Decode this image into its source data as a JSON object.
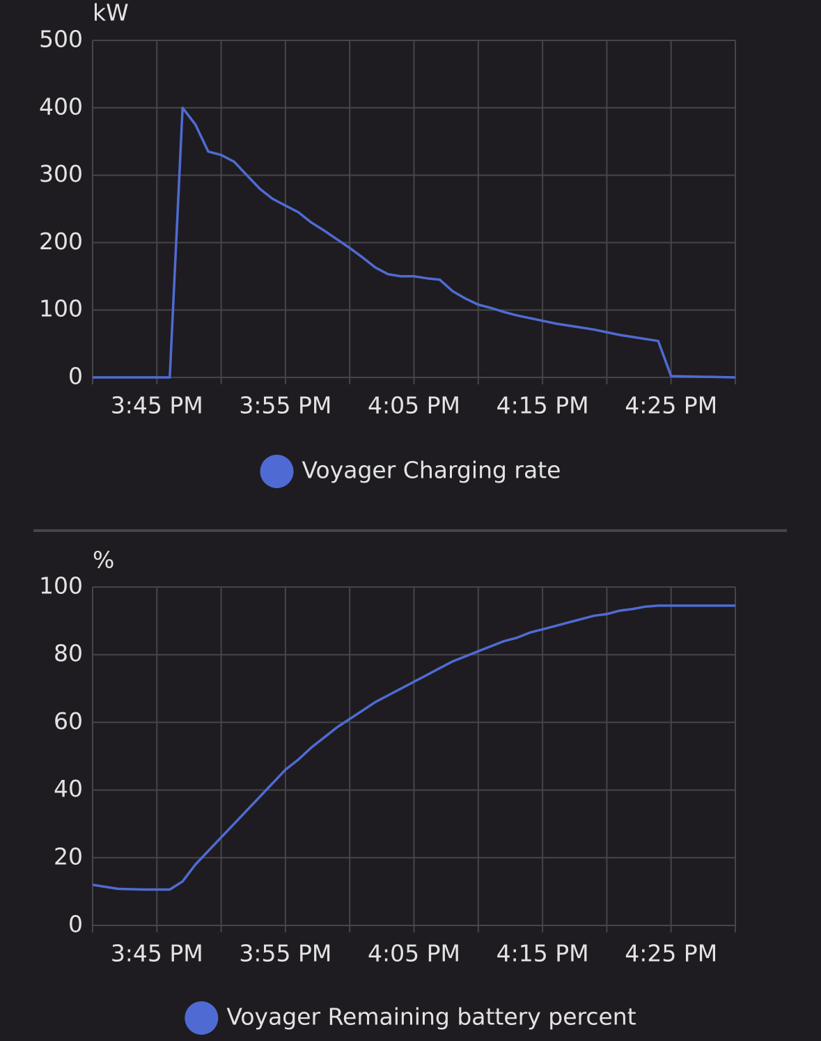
{
  "chart_data": [
    {
      "type": "line",
      "y_label": "kW",
      "x": [
        "3:40 PM",
        "3:41 PM",
        "3:42 PM",
        "3:43 PM",
        "3:44 PM",
        "3:45 PM",
        "3:46 PM",
        "3:47 PM",
        "3:48 PM",
        "3:49 PM",
        "3:50 PM",
        "3:51 PM",
        "3:52 PM",
        "3:53 PM",
        "3:54 PM",
        "3:55 PM",
        "3:56 PM",
        "3:57 PM",
        "3:58 PM",
        "3:59 PM",
        "4:00 PM",
        "4:01 PM",
        "4:02 PM",
        "4:03 PM",
        "4:04 PM",
        "4:05 PM",
        "4:06 PM",
        "4:07 PM",
        "4:08 PM",
        "4:09 PM",
        "4:10 PM",
        "4:11 PM",
        "4:12 PM",
        "4:13 PM",
        "4:14 PM",
        "4:15 PM",
        "4:16 PM",
        "4:17 PM",
        "4:18 PM",
        "4:19 PM",
        "4:20 PM",
        "4:21 PM",
        "4:22 PM",
        "4:23 PM",
        "4:24 PM",
        "4:25 PM",
        "4:30 PM"
      ],
      "series": [
        {
          "name": "Voyager Charging rate",
          "color": "#4f6bd3",
          "values": [
            0,
            0,
            0,
            0,
            0,
            0,
            0,
            400,
            375,
            335,
            330,
            320,
            300,
            280,
            265,
            255,
            245,
            230,
            218,
            205,
            192,
            178,
            163,
            153,
            150,
            150,
            147,
            145,
            128,
            117,
            108,
            103,
            97,
            92,
            88,
            84,
            80,
            77,
            74,
            71,
            67,
            63,
            60,
            57,
            54,
            2,
            0
          ]
        }
      ],
      "xlim": [
        "3:40 PM",
        "4:30 PM"
      ],
      "xticks": [
        "3:45 PM",
        "3:55 PM",
        "4:05 PM",
        "4:15 PM",
        "4:25 PM"
      ],
      "ylim": [
        0,
        500
      ],
      "yticks": [
        0,
        100,
        200,
        300,
        400,
        500
      ],
      "grid": true
    },
    {
      "type": "line",
      "y_label": "%",
      "x": [
        "3:40 PM",
        "3:41 PM",
        "3:42 PM",
        "3:43 PM",
        "3:44 PM",
        "3:45 PM",
        "3:46 PM",
        "3:47 PM",
        "3:48 PM",
        "3:49 PM",
        "3:50 PM",
        "3:51 PM",
        "3:52 PM",
        "3:53 PM",
        "3:54 PM",
        "3:55 PM",
        "3:56 PM",
        "3:57 PM",
        "3:58 PM",
        "3:59 PM",
        "4:00 PM",
        "4:01 PM",
        "4:02 PM",
        "4:03 PM",
        "4:04 PM",
        "4:05 PM",
        "4:06 PM",
        "4:07 PM",
        "4:08 PM",
        "4:09 PM",
        "4:10 PM",
        "4:11 PM",
        "4:12 PM",
        "4:13 PM",
        "4:14 PM",
        "4:15 PM",
        "4:16 PM",
        "4:17 PM",
        "4:18 PM",
        "4:19 PM",
        "4:20 PM",
        "4:21 PM",
        "4:22 PM",
        "4:23 PM",
        "4:24 PM",
        "4:25 PM",
        "4:30 PM"
      ],
      "series": [
        {
          "name": "Voyager Remaining battery percent",
          "color": "#4f6bd3",
          "values": [
            12,
            11.4,
            10.8,
            10.7,
            10.6,
            10.6,
            10.6,
            13,
            18,
            22,
            26,
            30,
            34,
            38,
            42,
            46,
            49,
            52.5,
            55.5,
            58.5,
            61,
            63.5,
            66,
            68,
            70,
            72,
            74,
            76,
            78,
            79.5,
            81,
            82.5,
            84,
            85,
            86.5,
            87.5,
            88.5,
            89.5,
            90.5,
            91.5,
            92,
            93,
            93.5,
            94.2,
            94.5,
            94.5,
            94.5
          ]
        }
      ],
      "xlim": [
        "3:40 PM",
        "4:30 PM"
      ],
      "xticks": [
        "3:45 PM",
        "3:55 PM",
        "4:05 PM",
        "4:15 PM",
        "4:25 PM"
      ],
      "ylim": [
        0,
        100
      ],
      "yticks": [
        0,
        20,
        40,
        60,
        80,
        100
      ],
      "grid": true
    }
  ]
}
